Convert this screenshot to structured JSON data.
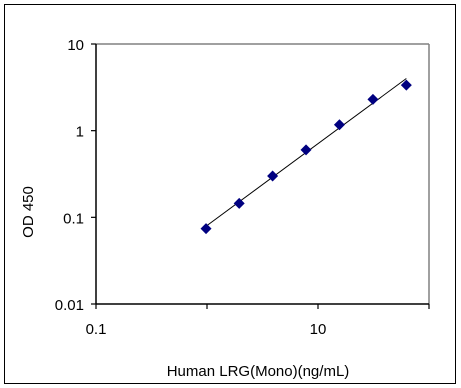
{
  "chart_data": {
    "type": "scatter",
    "title": "",
    "xlabel": "Human LRG(Mono)(ng/mL)",
    "ylabel": "OD 450",
    "x_scale": "log",
    "y_scale": "log",
    "xlim": [
      0.1,
      100
    ],
    "ylim": [
      0.01,
      10
    ],
    "x_ticks": [
      {
        "value": 0.1,
        "label": "0.1"
      },
      {
        "value": 10,
        "label": "10"
      }
    ],
    "y_ticks": [
      {
        "value": 0.01,
        "label": "0.01"
      },
      {
        "value": 0.1,
        "label": "0.1"
      },
      {
        "value": 1,
        "label": "1"
      },
      {
        "value": 10,
        "label": "10"
      }
    ],
    "grid": false,
    "legend": "none",
    "trendline": true,
    "marker": "diamond",
    "colors": {
      "marker": "#000080",
      "line": "#000000",
      "plot_border": "#808080"
    },
    "series": [
      {
        "x": [
          0.98,
          1.95,
          3.9,
          7.8,
          15.6,
          31.25,
          62.5
        ],
        "y": [
          0.074,
          0.145,
          0.3,
          0.6,
          1.17,
          2.3,
          3.35
        ]
      }
    ]
  }
}
